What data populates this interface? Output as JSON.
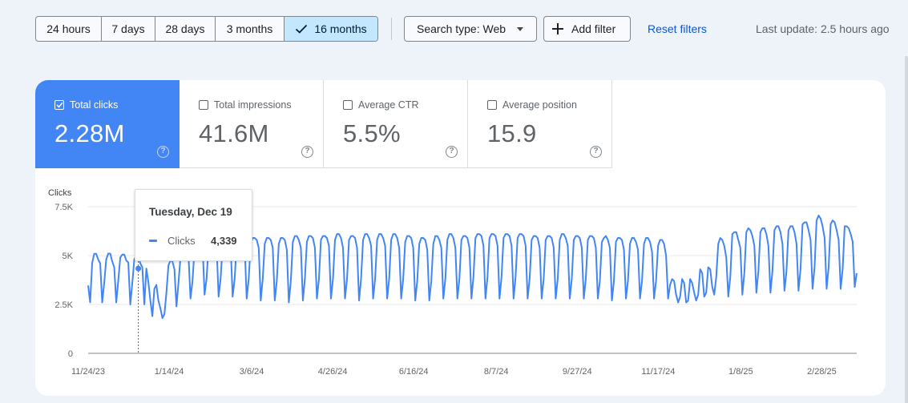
{
  "toolbar": {
    "ranges": [
      "24 hours",
      "7 days",
      "28 days",
      "3 months",
      "16 months"
    ],
    "selected_range": "16 months",
    "search_type": "Search type: Web",
    "add_filter": "Add filter",
    "reset_filters": "Reset filters",
    "last_update": "Last update: 2.5 hours ago"
  },
  "metrics": [
    {
      "label": "Total clicks",
      "value": "2.28M",
      "checked": true
    },
    {
      "label": "Total impressions",
      "value": "41.6M",
      "checked": false
    },
    {
      "label": "Average CTR",
      "value": "5.5%",
      "checked": false
    },
    {
      "label": "Average position",
      "value": "15.9",
      "checked": false
    }
  ],
  "colors": {
    "accent": "#4285f4",
    "selected_range_bg": "#c2e7ff",
    "link": "#0b57d0"
  },
  "icons": [
    "check-icon",
    "caret-down-icon",
    "plus-icon",
    "checkbox-icon",
    "help-icon"
  ],
  "tooltip": {
    "date": "Tuesday, Dec 19",
    "series": "Clicks",
    "value": "4,339"
  },
  "chart_data": {
    "type": "line",
    "ylabel": "Clicks",
    "ylim": [
      0,
      7500
    ],
    "y_ticks": [
      "7.5K",
      "5K",
      "2.5K",
      "0"
    ],
    "y_tick_values": [
      7500,
      5000,
      2500,
      0
    ],
    "x_tick_labels": [
      "11/24/23",
      "1/14/24",
      "3/6/24",
      "4/26/24",
      "6/16/24",
      "8/7/24",
      "9/27/24",
      "11/17/24",
      "1/8/25",
      "2/28/25"
    ],
    "x_start": "2023-11-24",
    "x_end": "2025-03-22",
    "grid": true,
    "series": [
      {
        "name": "Clicks",
        "color": "#4285f4",
        "values": [
          3470,
          2610,
          4620,
          5090,
          5090,
          4800,
          4600,
          2600,
          3600,
          4800,
          5100,
          5100,
          4700,
          4400,
          2600,
          3700,
          4900,
          5050,
          5050,
          4750,
          4650,
          2500,
          3600,
          4800,
          5000,
          4950,
          4600,
          4400,
          2500,
          4339,
          3650,
          2700,
          1900,
          3300,
          3500,
          2700,
          2300,
          1800,
          2000,
          3100,
          4500,
          4750,
          4700,
          4300,
          2400,
          3600,
          4900,
          5500,
          5600,
          5500,
          5000,
          2800,
          3700,
          5300,
          5800,
          5700,
          5700,
          5600,
          3000,
          3800,
          5500,
          5800,
          5900,
          5750,
          5500,
          2900,
          3800,
          5500,
          5800,
          5900,
          5900,
          5500,
          2900,
          3800,
          5600,
          5900,
          6000,
          5900,
          5500,
          2800,
          3800,
          5600,
          5900,
          5900,
          5800,
          5400,
          2700,
          3800,
          5600,
          5900,
          5900,
          5800,
          5400,
          2700,
          3700,
          5600,
          5900,
          5900,
          5800,
          5300,
          2600,
          3700,
          5700,
          6000,
          6000,
          5800,
          5400,
          2700,
          3800,
          5700,
          6000,
          6000,
          5900,
          5400,
          2800,
          3800,
          5800,
          6000,
          6000,
          5900,
          5500,
          2800,
          3800,
          5800,
          6100,
          6100,
          5900,
          5400,
          2800,
          3800,
          5800,
          6000,
          6000,
          5900,
          5400,
          2700,
          3800,
          5800,
          6100,
          6100,
          5900,
          5500,
          2800,
          3800,
          5800,
          6100,
          6100,
          5900,
          5500,
          2800,
          3800,
          5800,
          6100,
          6100,
          5900,
          5400,
          2800,
          3800,
          5700,
          6000,
          6000,
          5900,
          5400,
          2700,
          3700,
          5600,
          5900,
          5900,
          5800,
          5300,
          2700,
          3700,
          5600,
          6000,
          6000,
          5800,
          5400,
          2800,
          3800,
          5800,
          6100,
          6100,
          5900,
          5400,
          2800,
          3800,
          5800,
          6000,
          6000,
          5900,
          5400,
          2800,
          3900,
          5900,
          6100,
          6100,
          6000,
          5500,
          2800,
          3900,
          5900,
          6100,
          6100,
          6000,
          5500,
          2800,
          3900,
          5900,
          6100,
          6100,
          6000,
          5500,
          2800,
          3900,
          5900,
          6100,
          6100,
          6000,
          5500,
          2800,
          3800,
          5800,
          6000,
          6000,
          5900,
          5400,
          2800,
          3800,
          5800,
          6000,
          6000,
          5900,
          5400,
          2800,
          3800,
          5800,
          6100,
          6100,
          5900,
          5500,
          2800,
          3800,
          5800,
          6000,
          6000,
          5900,
          5400,
          2800,
          3800,
          5800,
          6000,
          6000,
          5900,
          5400,
          2800,
          3700,
          5700,
          5900,
          6000,
          5800,
          5400,
          2700,
          3700,
          5700,
          5900,
          5900,
          5800,
          5300,
          2800,
          3700,
          5600,
          5900,
          5900,
          5700,
          5300,
          2800,
          3700,
          5600,
          5900,
          5900,
          5700,
          5200,
          2800,
          3700,
          5500,
          5800,
          5800,
          5600,
          5000,
          2800,
          3500,
          3800,
          3700,
          3000,
          2600,
          2900,
          3800,
          3600,
          2600,
          2700,
          3800,
          3600,
          3100,
          2700,
          3000,
          4300,
          4100,
          2900,
          3100,
          4400,
          4300,
          3400,
          3000,
          3900,
          5600,
          5900,
          5800,
          5500,
          4900,
          2900,
          3900,
          6100,
          6200,
          6200,
          5800,
          5400,
          3000,
          4100,
          6200,
          6400,
          6300,
          6000,
          5500,
          3100,
          4200,
          6200,
          6400,
          6400,
          6100,
          5500,
          3100,
          4200,
          6300,
          6500,
          6500,
          6200,
          5600,
          3200,
          4200,
          6300,
          6500,
          6500,
          6200,
          5600,
          3200,
          4300,
          6600,
          6700,
          6700,
          6300,
          5800,
          3300,
          4400,
          6800,
          7050,
          6900,
          6500,
          5900,
          3300,
          4400,
          6600,
          6800,
          6700,
          6300,
          5800,
          3300,
          4300,
          6500,
          6500,
          6400,
          6100,
          5700,
          3400,
          4100
        ]
      }
    ]
  }
}
